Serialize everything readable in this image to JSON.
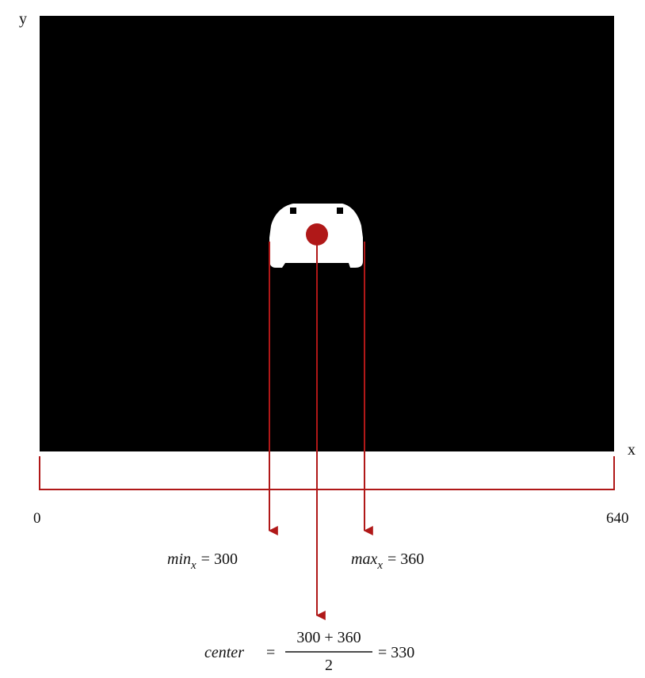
{
  "axes": {
    "x_label": "x",
    "y_label": "y",
    "x_min_label": "0",
    "x_max_label": "640"
  },
  "colors": {
    "frame": "#000000",
    "marker": "#b01818",
    "arrows": "#b01818",
    "car": "#ffffff"
  },
  "annotations": {
    "min_x": {
      "var": "min",
      "sub": "x",
      "rhs": "= 300"
    },
    "max_x": {
      "var": "max",
      "sub": "x",
      "rhs": "= 360"
    },
    "center": {
      "var": "center",
      "eq": "=",
      "numerator": "300 + 360",
      "denominator": "2",
      "result": "= 330"
    }
  },
  "values": {
    "image_width": 640,
    "min_x": 300,
    "max_x": 360,
    "center_x": 330
  }
}
